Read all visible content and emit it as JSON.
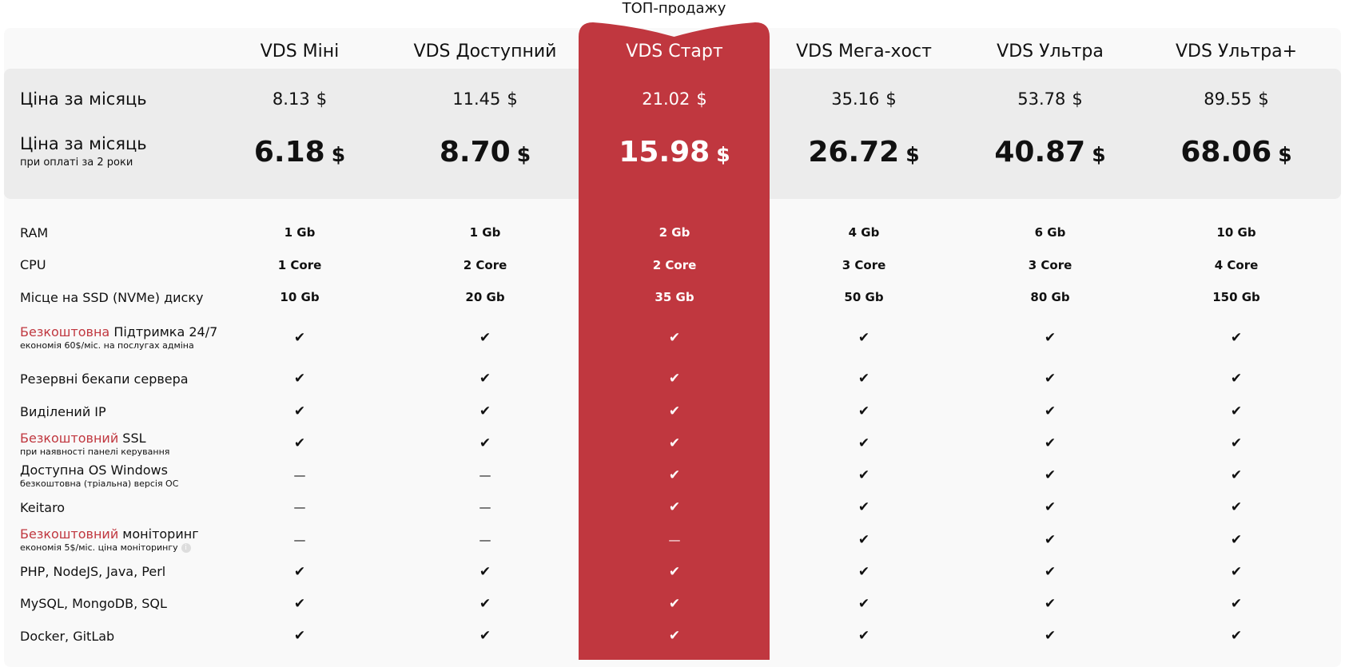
{
  "badge": "ТОП-продажу",
  "colors": {
    "accent": "#c0373f",
    "band": "#ececec",
    "background": "#f9f9f9"
  },
  "price_label": "Ціна за місяць",
  "price2_label": "Ціна за місяць",
  "price2_sub": "при оплаті за 2 роки",
  "currency": "$",
  "plans": [
    {
      "name": "VDS Міні",
      "price": "8.13",
      "price2": "6.18"
    },
    {
      "name": "VDS Доступний",
      "price": "11.45",
      "price2": "8.70"
    },
    {
      "name": "VDS Старт",
      "price": "21.02",
      "price2": "15.98",
      "highlighted": true
    },
    {
      "name": "VDS Мега-хост",
      "price": "35.16",
      "price2": "26.72"
    },
    {
      "name": "VDS Ультра",
      "price": "53.78",
      "price2": "40.87"
    },
    {
      "name": "VDS Ультра+",
      "price": "89.55",
      "price2": "68.06"
    }
  ],
  "features": [
    {
      "red": "",
      "text": "RAM",
      "sub": "",
      "values": [
        "1 Gb",
        "1 Gb",
        "2 Gb",
        "4 Gb",
        "6 Gb",
        "10 Gb"
      ]
    },
    {
      "red": "",
      "text": "CPU",
      "sub": "",
      "values": [
        "1 Core",
        "2 Core",
        "2 Core",
        "3 Core",
        "3 Core",
        "4 Core"
      ]
    },
    {
      "red": "",
      "text": "Місце на SSD (NVMe) диску",
      "sub": "",
      "values": [
        "10 Gb",
        "20 Gb",
        "35 Gb",
        "50 Gb",
        "80 Gb",
        "150 Gb"
      ]
    },
    {
      "red": "Безкоштовна",
      "text": " Підтримка 24/7",
      "sub": "економія 60$/міс. на послугах адміна",
      "values": [
        "✔",
        "✔",
        "✔",
        "✔",
        "✔",
        "✔"
      ]
    },
    {
      "red": "",
      "text": "Резервні бекапи сервера",
      "sub": "",
      "values": [
        "✔",
        "✔",
        "✔",
        "✔",
        "✔",
        "✔"
      ]
    },
    {
      "red": "",
      "text": "Виділений IP",
      "sub": "",
      "values": [
        "✔",
        "✔",
        "✔",
        "✔",
        "✔",
        "✔"
      ]
    },
    {
      "red": "Безкоштовний",
      "text": " SSL",
      "sub": "при наявності панелі керування",
      "values": [
        "✔",
        "✔",
        "✔",
        "✔",
        "✔",
        "✔"
      ]
    },
    {
      "red": "",
      "text": "Доступна OS Windows",
      "sub": "безкоштовна (тріальна) версія ОС",
      "values": [
        "—",
        "—",
        "✔",
        "✔",
        "✔",
        "✔"
      ]
    },
    {
      "red": "",
      "text": "Keitaro",
      "sub": "",
      "values": [
        "—",
        "—",
        "✔",
        "✔",
        "✔",
        "✔"
      ]
    },
    {
      "red": "Безкоштовний",
      "text": " моніторинг",
      "sub": "економія 5$/міс. ціна моніторингу",
      "info": "i",
      "values": [
        "—",
        "—",
        "—",
        "✔",
        "✔",
        "✔"
      ]
    },
    {
      "red": "",
      "text": "PHP, NodeJS, Java, Perl",
      "sub": "",
      "values": [
        "✔",
        "✔",
        "✔",
        "✔",
        "✔",
        "✔"
      ]
    },
    {
      "red": "",
      "text": "MySQL, MongoDB, SQL",
      "sub": "",
      "values": [
        "✔",
        "✔",
        "✔",
        "✔",
        "✔",
        "✔"
      ]
    },
    {
      "red": "",
      "text": "Docker, GitLab",
      "sub": "",
      "values": [
        "✔",
        "✔",
        "✔",
        "✔",
        "✔",
        "✔"
      ]
    }
  ]
}
